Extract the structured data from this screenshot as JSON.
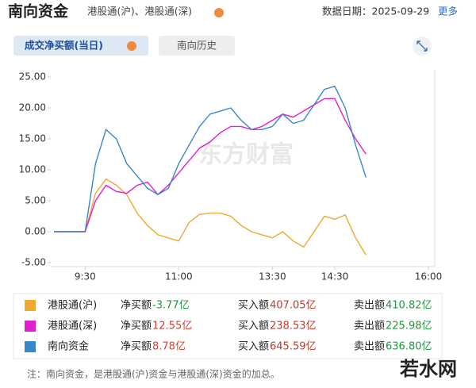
{
  "header": {
    "title": "南向资金",
    "subtitle": "港股通(沪)、港股通(深)",
    "date": "数据日期：2025-09-29",
    "more": "更多"
  },
  "tabs": [
    "成交净买额(当日)",
    "南向历史"
  ],
  "chart_data": {
    "type": "line",
    "categories": [
      null,
      null,
      null,
      "9:30",
      null,
      null,
      null,
      null,
      null,
      null,
      null,
      null,
      "11:00",
      null,
      null,
      null,
      null,
      null,
      null,
      null,
      null,
      "13:30",
      null,
      null,
      null,
      null,
      null,
      "14:30",
      null,
      null,
      null,
      null,
      null,
      null,
      null,
      null,
      "16:00"
    ],
    "series": [
      {
        "name": "港股通(沪)",
        "color": "#f0a830",
        "values": [
          0,
          0,
          0,
          0,
          6.2,
          8.5,
          7.5,
          6,
          3,
          1,
          -0.5,
          -1,
          -1.5,
          1.5,
          2.8,
          3,
          3,
          2.5,
          1,
          0,
          -0.5,
          -1,
          0,
          -1.5,
          -2.5,
          0,
          2.5,
          2,
          2.7,
          -1,
          -3.77,
          null,
          null,
          null,
          null,
          null,
          null
        ]
      },
      {
        "name": "港股通(深)",
        "color": "#e020d0",
        "values": [
          0,
          0,
          0,
          0,
          5,
          7.5,
          6.5,
          6.2,
          7.5,
          8,
          6,
          7.5,
          9.5,
          11.5,
          13.5,
          14.5,
          16,
          17,
          17,
          16.5,
          17,
          18,
          19,
          18.5,
          19.5,
          20.5,
          21.5,
          21.5,
          18,
          15,
          12.55,
          null,
          null,
          null,
          null,
          null,
          null
        ]
      },
      {
        "name": "南向资金",
        "color": "#3a87c8",
        "values": [
          0,
          0,
          0,
          0,
          11,
          16.5,
          15,
          11,
          9,
          7,
          6,
          7,
          11,
          14,
          17,
          19,
          19.5,
          20,
          18,
          16.5,
          16.5,
          17,
          19,
          17.5,
          18,
          20.5,
          23,
          23.5,
          20,
          14,
          8.78,
          null,
          null,
          null,
          null,
          null,
          null
        ]
      }
    ],
    "ylim": [
      -5,
      25
    ],
    "yticks": [
      {
        "value": -5,
        "label": "-5.00"
      },
      {
        "value": 0,
        "label": "0.00"
      },
      {
        "value": 5,
        "label": "5.00"
      },
      {
        "value": 10,
        "label": "10.00"
      },
      {
        "value": 15,
        "label": "15.00"
      },
      {
        "value": 20,
        "label": "20.00"
      },
      {
        "value": 25,
        "label": "25.00"
      }
    ],
    "watermark": "东方财富"
  },
  "summary": {
    "rows": [
      {
        "net_label": "净买额",
        "net": "-3.77亿",
        "buy_label": "买入额",
        "buy": "407.05亿",
        "sell_label": "卖出额",
        "sell": "410.82亿"
      },
      {
        "net_label": "净买额",
        "net": "12.55亿",
        "buy_label": "买入额",
        "buy": "238.53亿",
        "sell_label": "卖出额",
        "sell": "225.98亿"
      },
      {
        "net_label": "净买额",
        "net": "8.78亿",
        "buy_label": "买入额",
        "buy": "645.59亿",
        "sell_label": "卖出额",
        "sell": "636.80亿"
      }
    ]
  },
  "note": "注：南向资金，是港股通(沪)资金与港股通(深)资金的加总。",
  "watermark": "若水网"
}
